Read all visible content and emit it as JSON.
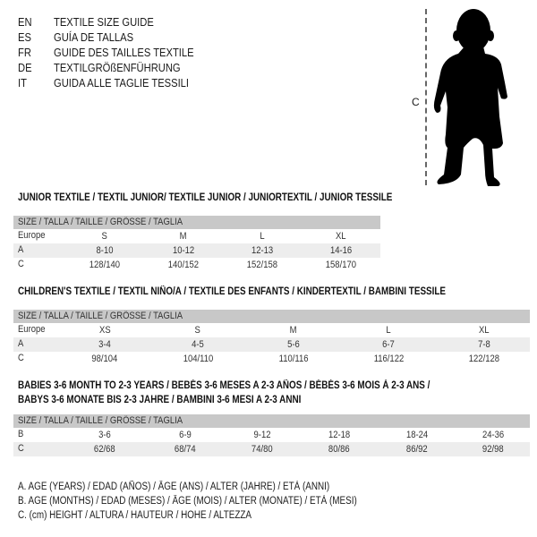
{
  "languages": [
    {
      "code": "EN",
      "text": "TEXTILE SIZE GUIDE"
    },
    {
      "code": "ES",
      "text": "GUÍA DE TALLAS"
    },
    {
      "code": "FR",
      "text": "GUIDE DES TAILLES TEXTILE"
    },
    {
      "code": "DE",
      "text": "TEXTILGRÖßENFÜHRUNG"
    },
    {
      "code": "IT",
      "text": "GUIDA ALLE TAGLIE TESSILI"
    }
  ],
  "figure": {
    "measure_label": "C",
    "icon": "baby-silhouette-icon"
  },
  "tables": [
    {
      "title": "JUNIOR TEXTILE / TEXTIL JUNIOR/ TEXTILE JUNIOR / JUNIORTEXTIL / JUNIOR TESSILE",
      "header": "SIZE / TALLA / TAILLE / GRÖSSE / TAGLIA",
      "rows": [
        {
          "label": "Europe",
          "values": [
            "S",
            "M",
            "L",
            "XL"
          ]
        },
        {
          "label": "A",
          "values": [
            "8-10",
            "10-12",
            "12-13",
            "14-16"
          ]
        },
        {
          "label": "C",
          "values": [
            "128/140",
            "140/152",
            "152/158",
            "158/170"
          ]
        }
      ]
    },
    {
      "title": "CHILDREN'S TEXTILE / TEXTIL NIÑO/A / TEXTILE DES ENFANTS / KINDERTEXTIL / BAMBINI TESSILE",
      "header": "SIZE / TALLA / TAILLE / GRÖSSE / TAGLIA",
      "rows": [
        {
          "label": "Europe",
          "values": [
            "XS",
            "S",
            "M",
            "L",
            "XL"
          ]
        },
        {
          "label": "A",
          "values": [
            "3-4",
            "4-5",
            "5-6",
            "6-7",
            "7-8"
          ]
        },
        {
          "label": "C",
          "values": [
            "98/104",
            "104/110",
            "110/116",
            "116/122",
            "122/128"
          ]
        }
      ]
    },
    {
      "title": "BABIES 3-6 MONTH TO 2-3 YEARS / BEBÉS 3-6 MESES A 2-3 AÑOS / BÉBÉS 3-6 MOIS À 2-3 ANS /",
      "title2": "BABYS 3-6 MONATE BIS 2-3 JAHRE / BAMBINI 3-6 MESI A 2-3 ANNI",
      "header": "SIZE / TALLA / TAILLE / GRÖSSE / TAGLIA",
      "rows": [
        {
          "label": "B",
          "values": [
            "3-6",
            "6-9",
            "9-12",
            "12-18",
            "18-24",
            "24-36"
          ]
        },
        {
          "label": "C",
          "values": [
            "62/68",
            "68/74",
            "74/80",
            "80/86",
            "86/92",
            "92/98"
          ]
        }
      ]
    }
  ],
  "legend": [
    "A. AGE (YEARS) / EDAD (AÑOS) / ÂGE (ANS) / ALTER (JAHRE) / ETÀ (ANNI)",
    "B. AGE (MONTHS) / EDAD (MESES) / ÂGE (MOIS) / ALTER (MONATE) / ETÀ (MESI)",
    "C. (cm) HEIGHT / ALTURA / HAUTEUR / HÖHE / ALTEZZA"
  ]
}
